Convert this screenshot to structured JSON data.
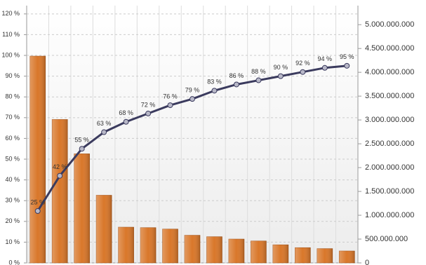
{
  "chart_data": {
    "type": "combo",
    "categories": [
      null,
      null,
      null,
      null,
      null,
      null,
      null,
      null,
      null,
      null,
      null,
      null,
      null,
      null,
      null
    ],
    "ylim": [
      0,
      124
    ],
    "yticks": [
      {
        "value": 0,
        "label": "0 %"
      },
      {
        "value": 10,
        "label": "10 %"
      },
      {
        "value": 20,
        "label": "20 %"
      },
      {
        "value": 30,
        "label": "30 %"
      },
      {
        "value": 40,
        "label": "40 %"
      },
      {
        "value": 50,
        "label": "50 %"
      },
      {
        "value": 60,
        "label": "60 %"
      },
      {
        "value": 70,
        "label": "70 %"
      },
      {
        "value": 80,
        "label": "80 %"
      },
      {
        "value": 90,
        "label": "90 %"
      },
      {
        "value": 100,
        "label": "100 %"
      },
      {
        "value": 110,
        "label": "110 %"
      },
      {
        "value": 120,
        "label": "120 %"
      }
    ],
    "y2lim": [
      0,
      5400000000
    ],
    "y2ticks": [
      0,
      {
        "value": 500000000,
        "label": "500.000.000"
      },
      {
        "value": 1000000000,
        "label": "1.000.000.000"
      },
      {
        "value": 1500000000,
        "label": "1.500.000.000"
      },
      {
        "value": 2000000000,
        "label": "2.000.000.000"
      },
      {
        "value": 2500000000,
        "label": "2.500.000.000"
      },
      {
        "value": 3000000000,
        "label": "3.000.000.000"
      },
      {
        "value": 3500000000,
        "label": "3.500.000.000"
      },
      {
        "value": 4000000000,
        "label": "4.000.000.000"
      },
      {
        "value": 4500000000,
        "label": "4.500.000.000"
      },
      {
        "value": 5000000000,
        "label": "5.000.000.000"
      }
    ],
    "grid": true,
    "series": [
      {
        "type": "bar",
        "axis": "y2",
        "color": "#d9772a",
        "values": [
          4340000000,
          3010000000,
          2290000000,
          1420000000,
          750000000,
          740000000,
          710000000,
          580000000,
          550000000,
          500000000,
          460000000,
          380000000,
          320000000,
          300000000,
          250000000
        ]
      },
      {
        "type": "line",
        "color": "#3b3b5e",
        "values": [
          25,
          42,
          55,
          63,
          68,
          72,
          76,
          79,
          83,
          86,
          88,
          90,
          92,
          94,
          95
        ],
        "value_labels": [
          "25 %",
          "42 %",
          "55 %",
          "63 %",
          "68 %",
          "72 %",
          "76 %",
          "79 %",
          "83 %",
          "86 %",
          "88 %",
          "90 %",
          "92 %",
          "94 %",
          "95 %"
        ]
      }
    ]
  }
}
